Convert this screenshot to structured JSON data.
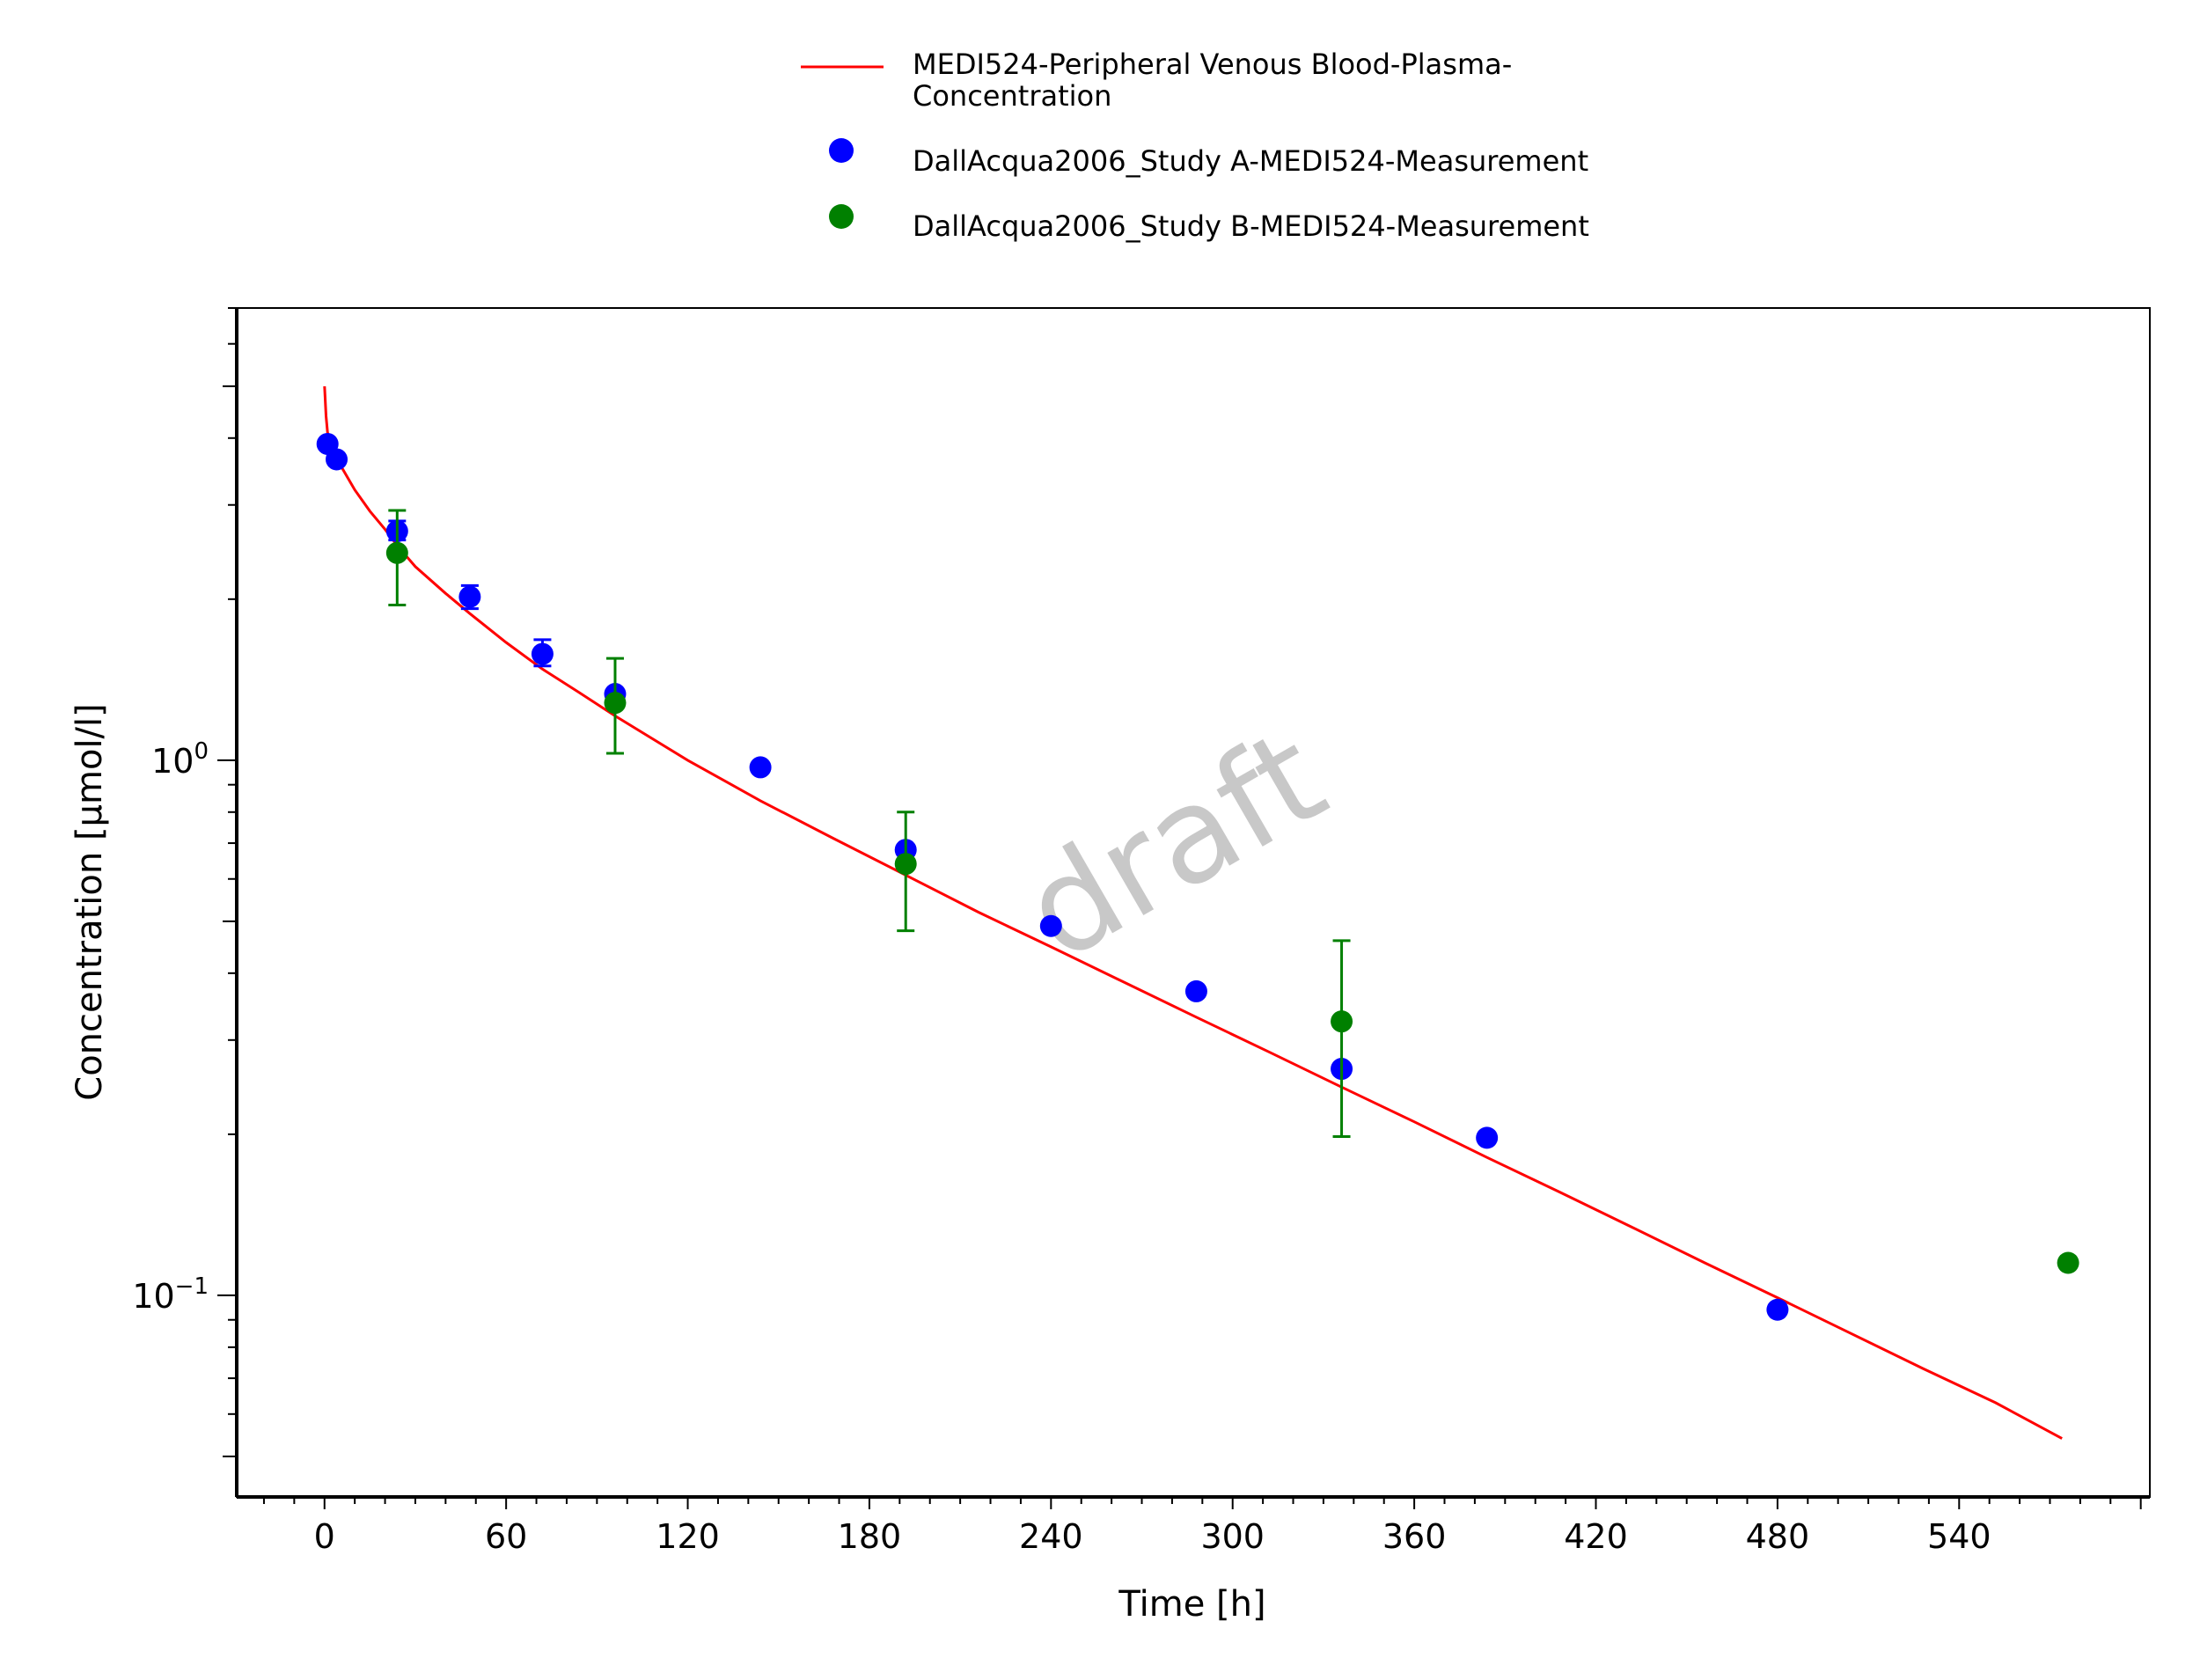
{
  "chart_data": {
    "type": "scatter",
    "xlabel": "Time [h]",
    "ylabel": "Concentration [µmol/l]",
    "xlim": [
      -29,
      603
    ],
    "ylim": [
      0.042,
      7.0
    ],
    "y_scale": "log",
    "x_ticks": [
      0,
      60,
      120,
      180,
      240,
      300,
      360,
      420,
      480,
      540
    ],
    "y_ticks": [
      {
        "value": 1,
        "base": "10",
        "exp": "0"
      },
      {
        "value": 0.1,
        "base": "10",
        "exp": "−1"
      }
    ],
    "watermark": "draft",
    "legend_position": "top-center",
    "series": [
      {
        "name": "MEDI524-Peripheral Venous Blood-Plasma-Concentration",
        "legend_lines": [
          "MEDI524-Peripheral Venous Blood-Plasma-",
          "Concentration"
        ],
        "kind": "line",
        "color": "#ff0000",
        "x": [
          0,
          0.5,
          1,
          3,
          6,
          10,
          15,
          20,
          24,
          30,
          40,
          48,
          60,
          72,
          84,
          96,
          120,
          144,
          168,
          192,
          216,
          240,
          264,
          288,
          312,
          336,
          360,
          384,
          408,
          432,
          456,
          480,
          504,
          528,
          552,
          574
        ],
        "y": [
          5.0,
          4.4,
          4.1,
          3.75,
          3.5,
          3.2,
          2.92,
          2.7,
          2.52,
          2.3,
          2.05,
          1.88,
          1.66,
          1.48,
          1.34,
          1.21,
          1.0,
          0.84,
          0.715,
          0.61,
          0.52,
          0.448,
          0.385,
          0.331,
          0.285,
          0.245,
          0.211,
          0.181,
          0.156,
          0.134,
          0.115,
          0.099,
          0.085,
          0.073,
          0.063,
          0.054
        ]
      },
      {
        "name": "DallAcqua2006_Study A-MEDI524-Measurement",
        "kind": "scatter",
        "color": "#0000ff",
        "x": [
          1,
          4,
          24,
          48,
          72,
          96,
          144,
          192,
          240,
          288,
          336,
          384,
          480
        ],
        "y": [
          3.9,
          3.65,
          2.68,
          2.02,
          1.58,
          1.33,
          0.97,
          0.68,
          0.49,
          0.37,
          0.265,
          0.197,
          0.094
        ],
        "err_lo": [
          null,
          null,
          2.58,
          1.92,
          1.5,
          null,
          null,
          null,
          null,
          null,
          null,
          null,
          null
        ],
        "err_hi": [
          null,
          null,
          2.8,
          2.12,
          1.68,
          null,
          null,
          null,
          null,
          null,
          null,
          null,
          null
        ]
      },
      {
        "name": "DallAcqua2006_Study B-MEDI524-Measurement",
        "kind": "scatter",
        "color": "#008000",
        "x": [
          24,
          96,
          192,
          336,
          576
        ],
        "y": [
          2.44,
          1.28,
          0.64,
          0.325,
          0.115
        ],
        "err_lo": [
          1.95,
          1.03,
          0.48,
          0.198,
          null
        ],
        "err_hi": [
          2.93,
          1.55,
          0.8,
          0.46,
          null
        ]
      }
    ]
  }
}
